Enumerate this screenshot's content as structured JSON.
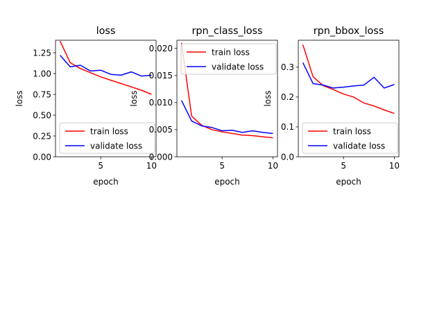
{
  "chart_data": [
    {
      "type": "line",
      "title": "loss",
      "xlabel": "epoch",
      "ylabel": "loss",
      "xlim": [
        0.55,
        10.45
      ],
      "ylim": [
        0.0,
        1.4
      ],
      "xticks": [
        5,
        10
      ],
      "yticks": [
        0.0,
        0.25,
        0.5,
        0.75,
        1.0,
        1.25
      ],
      "ytick_labels": [
        "0.00",
        "0.25",
        "0.50",
        "0.75",
        "1.00",
        "1.25"
      ],
      "legend_loc": "lower-left",
      "x": [
        1,
        2,
        3,
        4,
        5,
        6,
        7,
        8,
        9,
        10
      ],
      "series": [
        {
          "name": "train loss",
          "color": "#ff0000",
          "values": [
            1.39,
            1.13,
            1.06,
            1.01,
            0.96,
            0.92,
            0.88,
            0.84,
            0.8,
            0.75
          ]
        },
        {
          "name": "validate loss",
          "color": "#0000ff",
          "values": [
            1.22,
            1.08,
            1.1,
            1.03,
            1.04,
            0.99,
            0.98,
            1.02,
            0.97,
            0.98
          ]
        }
      ]
    },
    {
      "type": "line",
      "title": "rpn_class_loss",
      "xlabel": "epoch",
      "ylabel": "loss",
      "xlim": [
        0.55,
        10.45
      ],
      "ylim": [
        0.0,
        0.0215
      ],
      "xticks": [
        5,
        10
      ],
      "yticks": [
        0.0,
        0.005,
        0.01,
        0.015,
        0.02
      ],
      "ytick_labels": [
        "0.000",
        "0.005",
        "0.010",
        "0.015",
        "0.020"
      ],
      "legend_loc": "top-left",
      "x": [
        1,
        2,
        3,
        4,
        5,
        6,
        7,
        8,
        9,
        10
      ],
      "series": [
        {
          "name": "train loss",
          "color": "#ff0000",
          "values": [
            0.021,
            0.0075,
            0.0058,
            0.005,
            0.0046,
            0.0043,
            0.004,
            0.0039,
            0.0037,
            0.0035
          ]
        },
        {
          "name": "validate loss",
          "color": "#0000ff",
          "values": [
            0.0104,
            0.0066,
            0.0057,
            0.0054,
            0.0048,
            0.0049,
            0.0045,
            0.0048,
            0.0045,
            0.0043
          ]
        }
      ]
    },
    {
      "type": "line",
      "title": "rpn_bbox_loss",
      "xlabel": "epoch",
      "ylabel": "loss",
      "xlim": [
        0.55,
        10.45
      ],
      "ylim": [
        0.0,
        0.39
      ],
      "xticks": [
        5,
        10
      ],
      "yticks": [
        0.0,
        0.1,
        0.2,
        0.3
      ],
      "ytick_labels": [
        "0.0",
        "0.1",
        "0.2",
        "0.3"
      ],
      "legend_loc": "lower-left",
      "x": [
        1,
        2,
        3,
        4,
        5,
        6,
        7,
        8,
        9,
        10
      ],
      "series": [
        {
          "name": "train loss",
          "color": "#ff0000",
          "values": [
            0.375,
            0.268,
            0.238,
            0.225,
            0.21,
            0.2,
            0.18,
            0.17,
            0.157,
            0.145
          ]
        },
        {
          "name": "validate loss",
          "color": "#0000ff",
          "values": [
            0.315,
            0.245,
            0.24,
            0.23,
            0.233,
            0.237,
            0.24,
            0.266,
            0.23,
            0.242
          ]
        }
      ]
    }
  ]
}
